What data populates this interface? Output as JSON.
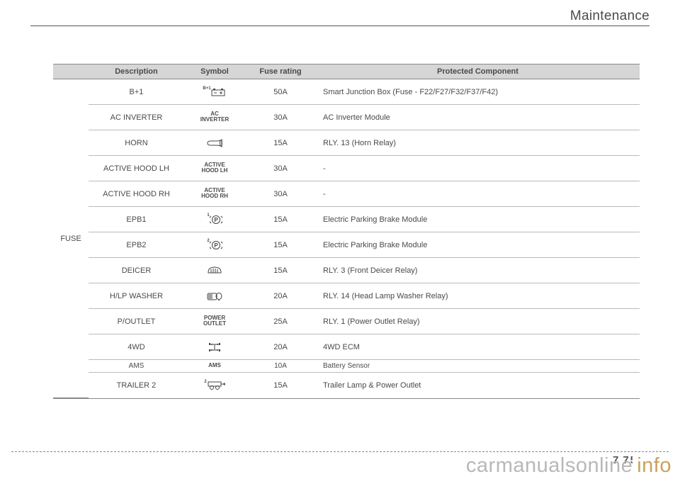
{
  "header": {
    "section_title": "Maintenance"
  },
  "table": {
    "columns": [
      "Description",
      "Symbol",
      "Fuse rating",
      "Protected Component"
    ],
    "group_label": "FUSE",
    "rows": [
      {
        "description": "B+1",
        "symbol_type": "battery",
        "symbol_sup": "B+1",
        "fuse": "50A",
        "component": "Smart Junction Box (Fuse - F22/F27/F32/F37/F42)",
        "compact": false
      },
      {
        "description": "AC INVERTER",
        "symbol_type": "text",
        "symbol_text": "AC\nINVERTER",
        "fuse": "30A",
        "component": "AC Inverter Module",
        "compact": false
      },
      {
        "description": "HORN",
        "symbol_type": "horn",
        "fuse": "15A",
        "component": "RLY. 13 (Horn Relay)",
        "compact": false
      },
      {
        "description": "ACTIVE HOOD LH",
        "symbol_type": "text",
        "symbol_text": "ACTIVE\nHOOD LH",
        "fuse": "30A",
        "component": "-",
        "compact": false
      },
      {
        "description": "ACTIVE HOOD RH",
        "symbol_type": "text",
        "symbol_text": "ACTIVE\nHOOD RH",
        "fuse": "30A",
        "component": "-",
        "compact": false
      },
      {
        "description": "EPB1",
        "symbol_type": "p-circle",
        "symbol_sup": "1",
        "fuse": "15A",
        "component": "Electric Parking Brake Module",
        "compact": false
      },
      {
        "description": "EPB2",
        "symbol_type": "p-circle",
        "symbol_sup": "2",
        "fuse": "15A",
        "component": "Electric Parking Brake Module",
        "compact": false
      },
      {
        "description": "DEICER",
        "symbol_type": "deicer",
        "fuse": "15A",
        "component": "RLY. 3 (Front Deicer Relay)",
        "compact": false
      },
      {
        "description": "H/LP WASHER",
        "symbol_type": "washer",
        "fuse": "20A",
        "component": "RLY. 14 (Head Lamp Washer Relay)",
        "compact": false
      },
      {
        "description": "P/OUTLET",
        "symbol_type": "text",
        "symbol_text": "POWER\nOUTLET",
        "fuse": "25A",
        "component": "RLY. 1 (Power Outlet Relay)",
        "compact": false
      },
      {
        "description": "4WD",
        "symbol_type": "4wd",
        "fuse": "20A",
        "component": "4WD ECM",
        "compact": false
      },
      {
        "description": "AMS",
        "symbol_type": "text-bold",
        "symbol_text": "AMS",
        "fuse": "10A",
        "component": "Battery Sensor",
        "compact": true
      },
      {
        "description": "TRAILER 2",
        "symbol_type": "trailer",
        "symbol_sup": "2",
        "fuse": "15A",
        "component": "Trailer Lamp & Power Outlet",
        "compact": false
      }
    ]
  },
  "footer": {
    "page_section": "7",
    "page_num": "75",
    "watermark_a": "carmanualsonline",
    "watermark_b": "info"
  }
}
